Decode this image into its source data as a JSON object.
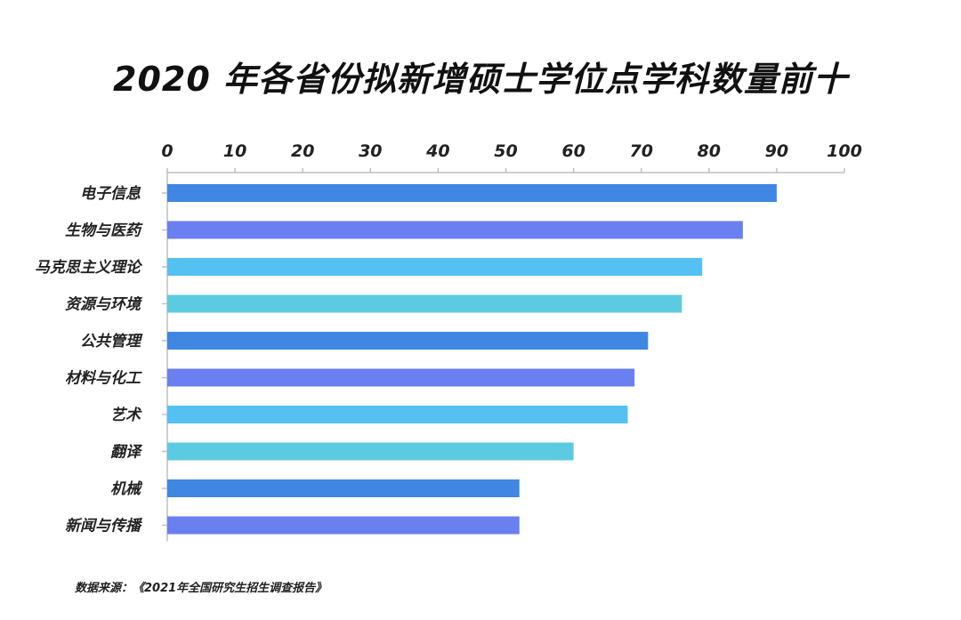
{
  "title": "2020 年各省份拟新增硕士学位点学科数量前十",
  "source_note": "数据来源：《2021年全国研究生招生调查报告》",
  "chart_data": {
    "type": "bar",
    "orientation": "horizontal",
    "title": "2020 年各省份拟新增硕士学位点学科数量前十",
    "xlabel": "",
    "ylabel": "",
    "xlim": [
      0,
      100
    ],
    "x_ticks": [
      "0",
      "10",
      "20",
      "30",
      "40",
      "50",
      "60",
      "70",
      "80",
      "90",
      "100"
    ],
    "x_axis_position": "top",
    "grid": false,
    "legend": "none",
    "categories": [
      "电子信息",
      "生物与医药",
      "马克思主义理论",
      "资源与环境",
      "公共管理",
      "材料与化工",
      "艺术",
      "翻译",
      "机械",
      "新闻与传播"
    ],
    "values": [
      90,
      85,
      79,
      76,
      71,
      69,
      68,
      60,
      52,
      52
    ],
    "bar_colors": [
      "#3f87e3",
      "#6a7ff0",
      "#55c0f2",
      "#5ccbe2",
      "#3f87e3",
      "#6a7ff0",
      "#55c0f2",
      "#5ccbe2",
      "#3f87e3",
      "#6a7ff0"
    ],
    "axis_color": "#bfbfbf"
  }
}
